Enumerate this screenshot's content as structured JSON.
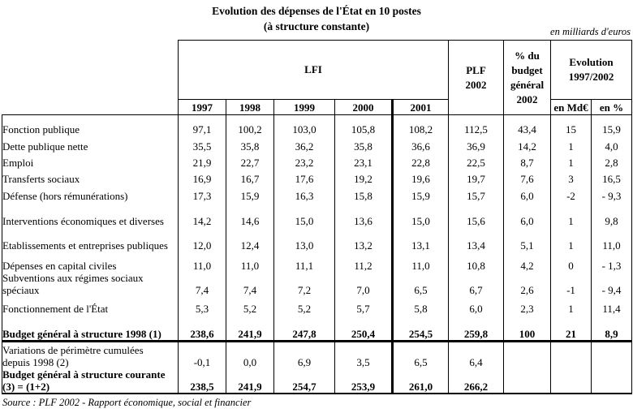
{
  "title": "Evolution des dépenses de l'État en 10 postes",
  "subtitle": "(à structure constante)",
  "unit_note": "en milliards d'euros",
  "source": "Source : PLF 2002 - Rapport économique, social et financier",
  "header": {
    "lfi": "LFI",
    "plf": "PLF\n2002",
    "pct_budget": "% du\nbudget\ngénéral\n2002",
    "evolution": "Evolution\n1997/2002",
    "years": [
      "1997",
      "1998",
      "1999",
      "2000",
      "2001"
    ],
    "evo_sub": [
      "en Md€",
      "en %"
    ]
  },
  "rows": [
    {
      "label": "Fonction publique",
      "bold": false,
      "values": [
        "97,1",
        "100,2",
        "103,0",
        "105,8",
        "108,2",
        "112,5",
        "43,4",
        "15",
        "15,9"
      ]
    },
    {
      "label": "Dette publique nette",
      "bold": false,
      "values": [
        "35,5",
        "35,8",
        "36,2",
        "35,8",
        "36,6",
        "36,9",
        "14,2",
        "1",
        "4,0"
      ]
    },
    {
      "label": "Emploi",
      "bold": false,
      "values": [
        "21,9",
        "22,7",
        "23,2",
        "23,1",
        "22,8",
        "22,5",
        "8,7",
        "1",
        "2,8"
      ]
    },
    {
      "label": "Transferts sociaux",
      "bold": false,
      "values": [
        "16,9",
        "16,7",
        "17,6",
        "19,2",
        "19,6",
        "19,7",
        "7,6",
        "3",
        "16,5"
      ]
    },
    {
      "label": "Défense (hors rémunérations)",
      "bold": false,
      "values": [
        "17,3",
        "15,9",
        "16,3",
        "15,8",
        "15,9",
        "15,7",
        "6,0",
        "-2",
        "-  9,3"
      ]
    },
    {
      "label": "Interventions économiques et diverses",
      "bold": false,
      "values": [
        "14,2",
        "14,6",
        "15,0",
        "13,6",
        "15,0",
        "15,6",
        "6,0",
        "1",
        "9,8"
      ]
    },
    {
      "label": "Etablissements et entreprises publiques",
      "bold": false,
      "values": [
        "12,0",
        "12,4",
        "13,0",
        "13,2",
        "13,1",
        "13,4",
        "5,1",
        "1",
        "11,0"
      ]
    },
    {
      "label": "Dépenses en capital civiles",
      "bold": false,
      "values": [
        "11,0",
        "11,0",
        "11,1",
        "11,2",
        "11,0",
        "10,8",
        "4,2",
        "0",
        "-  1,3"
      ]
    },
    {
      "label": "Subventions aux régimes sociaux\nspéciaux",
      "bold": false,
      "values": [
        "7,4",
        "7,4",
        "7,2",
        "7,0",
        "6,5",
        "6,7",
        "2,6",
        "-1",
        "-  9,4"
      ]
    },
    {
      "label": "Fonctionnement de l'État",
      "bold": false,
      "values": [
        "5,3",
        "5,2",
        "5,2",
        "5,7",
        "5,8",
        "6,0",
        "2,3",
        "1",
        "11,4"
      ]
    },
    {
      "label": "Budget général à structure 1998 (1)",
      "bold": true,
      "values": [
        "238,6",
        "241,9",
        "247,8",
        "250,4",
        "254,5",
        "259,8",
        "100",
        "21",
        "8,9"
      ]
    },
    {
      "label": "Variations de périmètre cumulées\ndepuis 1998 (2)",
      "bold": false,
      "values": [
        "-0,1",
        "0,0",
        "6,9",
        "3,5",
        "6,5",
        "6,4",
        "",
        "",
        ""
      ]
    },
    {
      "label": "Budget général à structure courante\n(3) = (1+2)",
      "bold": true,
      "values": [
        "238,5",
        "241,9",
        "254,7",
        "253,9",
        "261,0",
        "266,2",
        "",
        "",
        ""
      ]
    }
  ]
}
